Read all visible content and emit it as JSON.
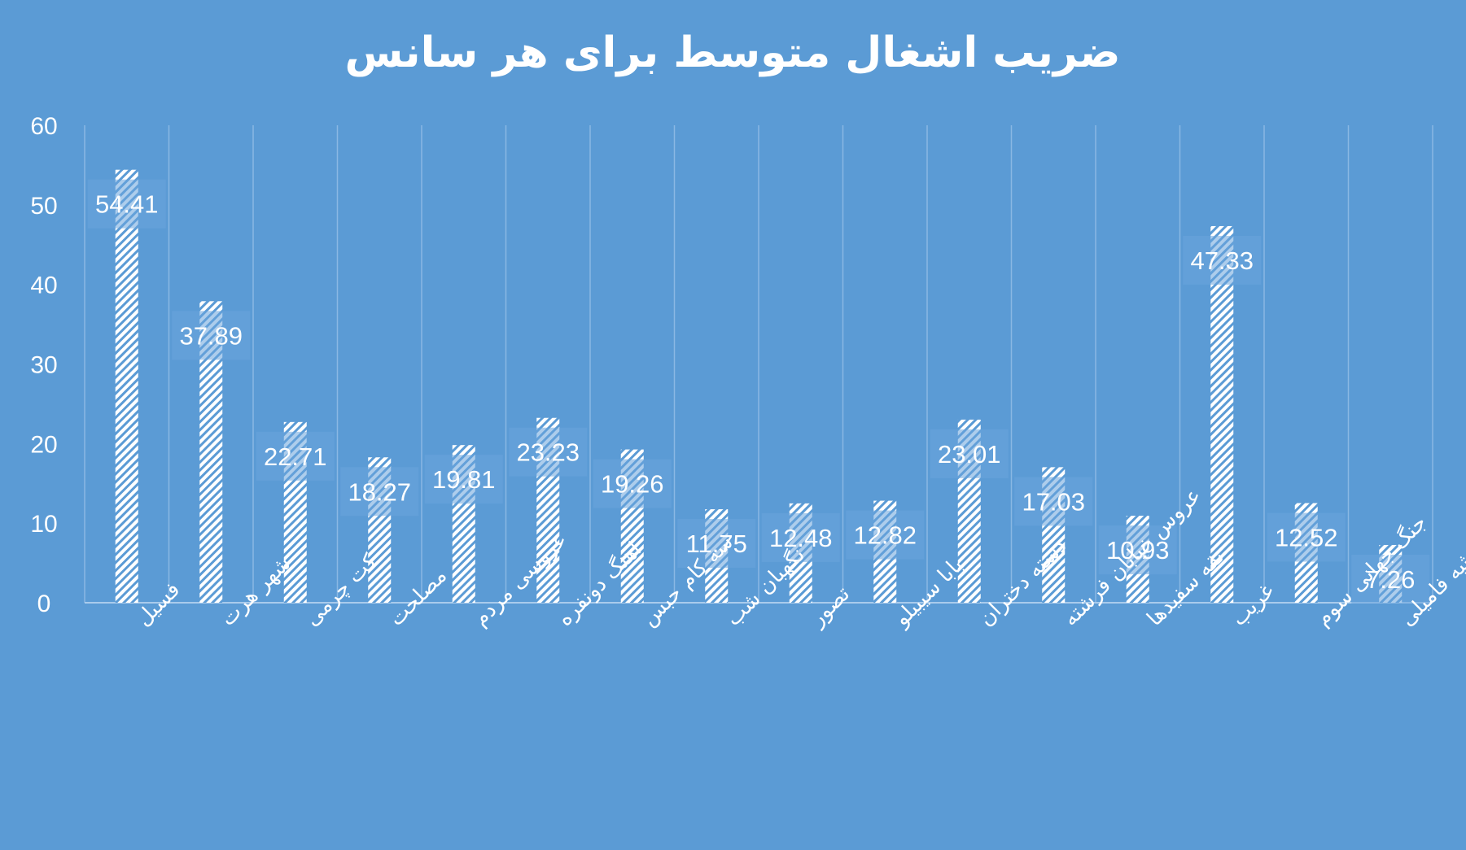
{
  "chart_data": {
    "type": "bar",
    "title": "ضریب اشغال متوسط برای هر سانس",
    "categories": [
      "فسیل",
      "شهر هرت",
      "کت چرمی",
      "مصلحت",
      "عروسی مردم",
      "آهنگ دونفره",
      "سه کام حبس",
      "نگهبان شب",
      "تصور",
      "بابا سیبیلو",
      "دسته دختران",
      "عروس خیابان فرشته",
      "یقه سفیدها",
      "غریب",
      "جنگ جهانی سوم",
      "ارثیه فامیلی"
    ],
    "values": [
      54.41,
      37.89,
      22.71,
      18.27,
      19.81,
      23.23,
      19.26,
      11.75,
      12.48,
      12.82,
      23.01,
      17.03,
      10.93,
      47.33,
      12.52,
      7.26
    ],
    "data_labels": [
      "54.41",
      "37.89",
      "22.71",
      "18.27",
      "19.81",
      "23.23",
      "19.26",
      "11.75",
      "12.48",
      "12.82",
      "23.01",
      "17.03",
      "10.93",
      "47.33",
      "12.52",
      "7.26"
    ],
    "y_ticks": [
      "0",
      "10",
      "20",
      "30",
      "40",
      "50",
      "60"
    ],
    "ylim": [
      0,
      60
    ],
    "xlabel": "",
    "ylabel": "",
    "grid": true,
    "legend": "none",
    "colors": {
      "background": "#5b9bd5",
      "bar_pattern": "#ffffff",
      "text": "#ffffff",
      "gridline": "#8ab8e4"
    }
  }
}
